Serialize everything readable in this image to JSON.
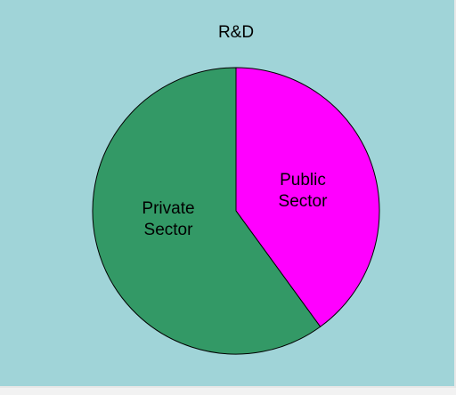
{
  "chart_data": {
    "type": "pie",
    "title": "R&D",
    "slices": [
      {
        "label_lines": [
          "Public",
          "Sector"
        ],
        "value": 40,
        "color": "#ff00ff"
      },
      {
        "label_lines": [
          "Private",
          "Sector"
        ],
        "value": 60,
        "color": "#339966"
      }
    ],
    "start_angle_deg": 0,
    "direction": "clockwise",
    "legend": "none"
  }
}
